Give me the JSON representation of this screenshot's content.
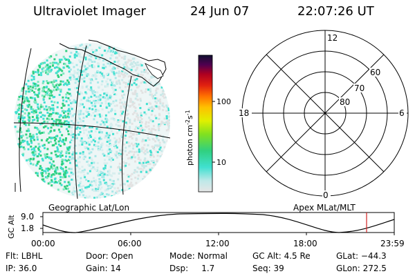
{
  "header": {
    "title": "Ultraviolet Imager",
    "date": "24 Jun 07",
    "time": "22:07:26 UT"
  },
  "image_panel": {
    "label": "Geographic Lat/Lon"
  },
  "colorbar": {
    "unit_label": "photon cm",
    "unit_sup1": "-2",
    "unit_mid": "s",
    "unit_sup2": "-1",
    "ticks": [
      "100",
      "10"
    ]
  },
  "polar_plot": {
    "label": "Apex MLat/MLT",
    "mlt_labels": {
      "top": "12",
      "left": "18",
      "right": "6",
      "bottom": "0"
    },
    "lat_labels": [
      "60",
      "70",
      "80"
    ]
  },
  "altitude_plot": {
    "ylabel": "GC Alt",
    "yticks": [
      "9.0",
      "1.8"
    ],
    "xticks": [
      "00:00",
      "06:00",
      "12:00",
      "18:00",
      "23:59"
    ],
    "marker_color": "#d02020"
  },
  "status": {
    "row1": {
      "flt": "Flt: LBHL",
      "door": "Door: Open",
      "mode": "Mode: Normal",
      "gc_alt": "GC Alt: 4.5 Re",
      "glat": "GLat: −44.3"
    },
    "row2": {
      "ip": "IP: 36.0",
      "gain": "Gain: 14",
      "dsp": "Dsp:     1.7",
      "seq": "Seq: 39",
      "glon": "GLon: 272.5"
    }
  }
}
